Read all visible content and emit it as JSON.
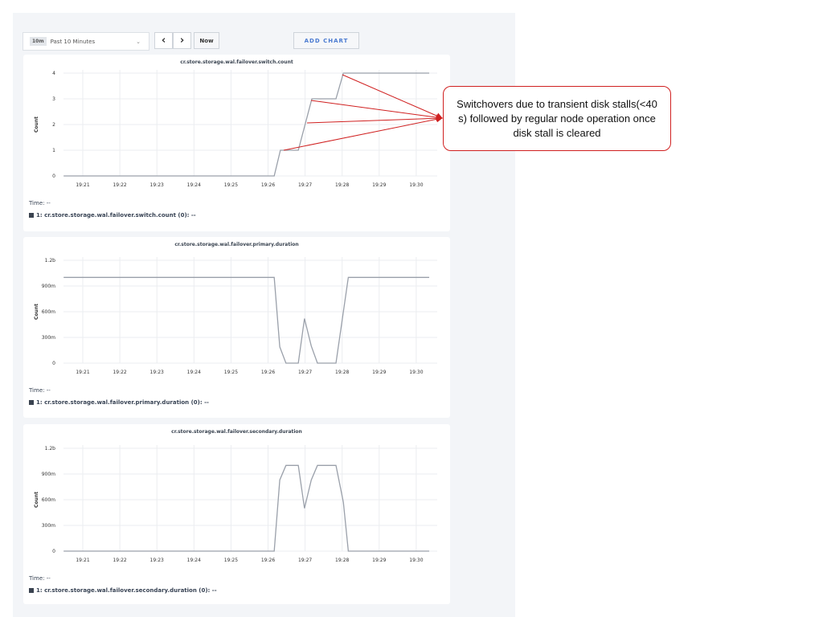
{
  "toolbar": {
    "range_badge": "10m",
    "range_label": "Past 10 Minutes",
    "prev_icon": "chevron-left",
    "next_icon": "chevron-right",
    "now_label": "Now",
    "add_chart_label": "ADD CHART"
  },
  "annotation": {
    "text": "Switchovers due to transient disk stalls(<40 s) followed by regular node operation once disk stall is cleared",
    "color": "#d02020"
  },
  "chart_data": [
    {
      "type": "line",
      "title": "cr.store.storage.wal.failover.switch.count",
      "ylabel": "Count",
      "xticks": [
        "19:21",
        "19:22",
        "19:23",
        "19:24",
        "19:25",
        "19:26",
        "19:27",
        "19:28",
        "19:29",
        "19:30"
      ],
      "yticks": [
        {
          "v": 0,
          "label": "0"
        },
        {
          "v": 1,
          "label": "1"
        },
        {
          "v": 2,
          "label": "2"
        },
        {
          "v": 3,
          "label": "3"
        },
        {
          "v": 4,
          "label": "4"
        }
      ],
      "ylim": [
        0,
        4
      ],
      "grid": true,
      "time_label": "Time:  --",
      "legend": "1: cr.store.storage.wal.failover.switch.count (0):  --",
      "series": [
        {
          "color": "#9aa0aa",
          "points": [
            [
              "19:20:29",
              0
            ],
            [
              "19:26:10",
              0
            ],
            [
              "19:26:20",
              1
            ],
            [
              "19:26:49",
              1
            ],
            [
              "19:27:11",
              3
            ],
            [
              "19:27:50",
              3
            ],
            [
              "19:28:02",
              4
            ],
            [
              "19:30:21",
              4
            ]
          ]
        }
      ]
    },
    {
      "type": "line",
      "title": "cr.store.storage.wal.failover.primary.duration",
      "ylabel": "Count",
      "xticks": [
        "19:21",
        "19:22",
        "19:23",
        "19:24",
        "19:25",
        "19:26",
        "19:27",
        "19:28",
        "19:29",
        "19:30"
      ],
      "yticks": [
        {
          "v": 0,
          "label": "0"
        },
        {
          "v": 0.3,
          "label": "300m"
        },
        {
          "v": 0.6,
          "label": "600m"
        },
        {
          "v": 0.9,
          "label": "900m"
        },
        {
          "v": 1.2,
          "label": "1.2b"
        }
      ],
      "ylim": [
        0,
        1.2
      ],
      "grid": true,
      "time_label": "Time:  --",
      "legend": "1: cr.store.storage.wal.failover.primary.duration (0):  --",
      "series": [
        {
          "color": "#9aa0aa",
          "points": [
            [
              "19:20:29",
              1
            ],
            [
              "19:26:10",
              1
            ],
            [
              "19:26:19",
              0.19
            ],
            [
              "19:26:29",
              0
            ],
            [
              "19:26:49",
              0
            ],
            [
              "19:26:59",
              0.52
            ],
            [
              "19:27:10",
              0.2
            ],
            [
              "19:27:20",
              0
            ],
            [
              "19:27:50",
              0
            ],
            [
              "19:28:10",
              1
            ],
            [
              "19:30:21",
              1
            ]
          ]
        }
      ]
    },
    {
      "type": "line",
      "title": "cr.store.storage.wal.failover.secondary.duration",
      "ylabel": "Count",
      "xticks": [
        "19:21",
        "19:22",
        "19:23",
        "19:24",
        "19:25",
        "19:26",
        "19:27",
        "19:28",
        "19:29",
        "19:30"
      ],
      "yticks": [
        {
          "v": 0,
          "label": "0"
        },
        {
          "v": 0.3,
          "label": "300m"
        },
        {
          "v": 0.6,
          "label": "600m"
        },
        {
          "v": 0.9,
          "label": "900m"
        },
        {
          "v": 1.2,
          "label": "1.2b"
        }
      ],
      "ylim": [
        0,
        1.2
      ],
      "grid": true,
      "time_label": "Time:  --",
      "legend": "1: cr.store.storage.wal.failover.secondary.duration (0):  --",
      "series": [
        {
          "color": "#9aa0aa",
          "points": [
            [
              "19:20:29",
              0
            ],
            [
              "19:26:10",
              0
            ],
            [
              "19:26:19",
              0.83
            ],
            [
              "19:26:29",
              1
            ],
            [
              "19:26:49",
              1
            ],
            [
              "19:26:59",
              0.5
            ],
            [
              "19:27:10",
              0.83
            ],
            [
              "19:27:20",
              1
            ],
            [
              "19:27:50",
              1
            ],
            [
              "19:28:02",
              0.57
            ],
            [
              "19:28:10",
              0
            ],
            [
              "19:30:21",
              0
            ]
          ]
        }
      ]
    }
  ]
}
